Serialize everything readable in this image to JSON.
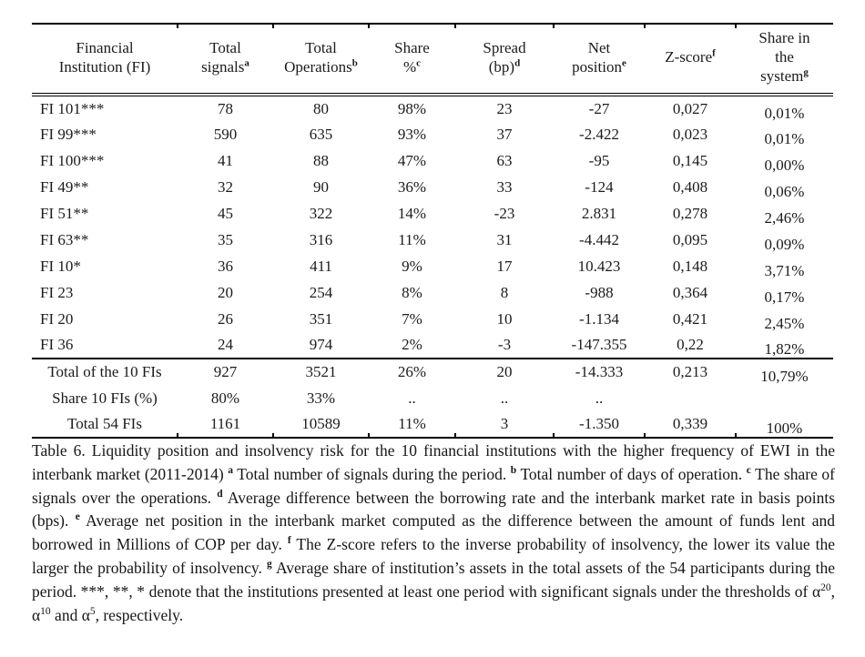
{
  "table": {
    "headers": [
      {
        "label": "Financial\nInstitution (FI)",
        "sup": ""
      },
      {
        "label": "Total\nsignals",
        "sup": "a"
      },
      {
        "label": "Total\nOperations",
        "sup": "b"
      },
      {
        "label": "Share\n%",
        "sup": "c"
      },
      {
        "label": "Spread\n(bp)",
        "sup": "d"
      },
      {
        "label": "Net\nposition",
        "sup": "e"
      },
      {
        "label": "Z-score",
        "sup": "f"
      },
      {
        "label": "Share in\nthe\nsystem",
        "sup": "g"
      }
    ],
    "fi_rows": [
      [
        "FI 101***",
        "78",
        "80",
        "98%",
        "23",
        "-27",
        "0,027",
        "0,01%"
      ],
      [
        "FI 99***",
        "590",
        "635",
        "93%",
        "37",
        "-2.422",
        "0,023",
        "0,01%"
      ],
      [
        "FI 100***",
        "41",
        "88",
        "47%",
        "63",
        "-95",
        "0,145",
        "0,00%"
      ],
      [
        "FI 49**",
        "32",
        "90",
        "36%",
        "33",
        "-124",
        "0,408",
        "0,06%"
      ],
      [
        "FI 51**",
        "45",
        "322",
        "14%",
        "-23",
        "2.831",
        "0,278",
        "2,46%"
      ],
      [
        "FI 63**",
        "35",
        "316",
        "11%",
        "31",
        "-4.442",
        "0,095",
        "0,09%"
      ],
      [
        "FI 10*",
        "36",
        "411",
        "9%",
        "17",
        "10.423",
        "0,148",
        "3,71%"
      ],
      [
        "FI 23",
        "20",
        "254",
        "8%",
        "8",
        "-988",
        "0,364",
        "0,17%"
      ],
      [
        "FI 20",
        "26",
        "351",
        "7%",
        "10",
        "-1.134",
        "0,421",
        "2,45%"
      ],
      [
        "FI 36",
        "24",
        "974",
        "2%",
        "-3",
        "-147.355",
        "0,22",
        "1,82%"
      ]
    ],
    "summary_rows": [
      [
        "Total of the 10 FIs",
        "927",
        "3521",
        "26%",
        "20",
        "-14.333",
        "0,213",
        "10,79%"
      ],
      [
        "Share 10 FIs (%)",
        "80%",
        "33%",
        "..",
        "..",
        "..",
        "",
        ""
      ],
      [
        "Total 54 FIs",
        "1161",
        "10589",
        "11%",
        "3",
        "-1.350",
        "0,339",
        "100%"
      ]
    ]
  },
  "caption": {
    "segments": [
      {
        "t": "Table 6.  Liquidity position and insolvency risk for the 10 financial institutions with the higher frequency of EWI in the interbank market (2011-2014) "
      },
      {
        "t": "a",
        "sup": true,
        "bold": true
      },
      {
        "t": " Total number of signals during the period. "
      },
      {
        "t": "b",
        "sup": true,
        "bold": true
      },
      {
        "t": " Total number of days of operation. "
      },
      {
        "t": "c",
        "sup": true,
        "bold": true
      },
      {
        "t": " The share of signals over the operations. "
      },
      {
        "t": "d",
        "sup": true,
        "bold": true
      },
      {
        "t": " Average difference between the borrowing rate and the interbank market rate in basis points (bps). "
      },
      {
        "t": "e",
        "sup": true,
        "bold": true
      },
      {
        "t": " Average net position in the interbank market computed as the difference between the amount of funds lent and borrowed in Millions of COP per day. "
      },
      {
        "t": "f",
        "sup": true,
        "bold": true
      },
      {
        "t": " The Z-score refers to the inverse probability of insolvency, the lower its value the larger the probability of insolvency. "
      },
      {
        "t": "g",
        "sup": true,
        "bold": true
      },
      {
        "t": " Average share of institution’s assets in the total assets of the 54 participants during the period. ***, **, * denote that the institutions presented at least one period with significant signals under the thresholds of α"
      },
      {
        "t": "20",
        "sup": true
      },
      {
        "t": ", α"
      },
      {
        "t": "10",
        "sup": true
      },
      {
        "t": " and α"
      },
      {
        "t": "5",
        "sup": true
      },
      {
        "t": ", respectively."
      }
    ]
  }
}
